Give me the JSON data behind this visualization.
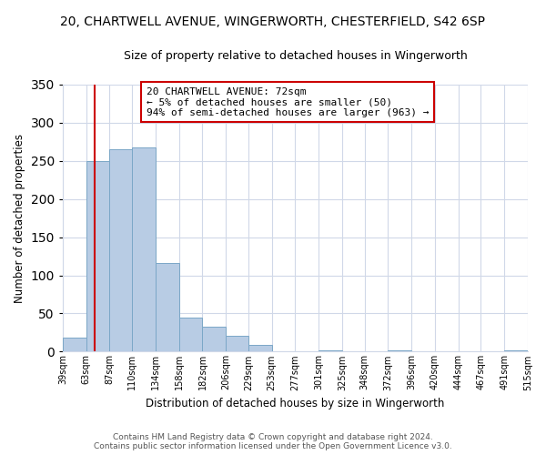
{
  "title": "20, CHARTWELL AVENUE, WINGERWORTH, CHESTERFIELD, S42 6SP",
  "subtitle": "Size of property relative to detached houses in Wingerworth",
  "xlabel": "Distribution of detached houses by size in Wingerworth",
  "ylabel": "Number of detached properties",
  "bar_edges": [
    39,
    63,
    87,
    110,
    134,
    158,
    182,
    206,
    229,
    253,
    277,
    301,
    325,
    348,
    372,
    396,
    420,
    444,
    467,
    491,
    515
  ],
  "bar_heights": [
    18,
    250,
    265,
    268,
    116,
    45,
    33,
    21,
    9,
    0,
    0,
    2,
    0,
    0,
    2,
    0,
    0,
    0,
    0,
    2
  ],
  "bar_color": "#b8cce4",
  "bar_edgecolor": "#7ba7c7",
  "property_line_x": 72,
  "property_line_color": "#cc0000",
  "ylim": [
    0,
    350
  ],
  "yticks": [
    0,
    50,
    100,
    150,
    200,
    250,
    300,
    350
  ],
  "annotation_title": "20 CHARTWELL AVENUE: 72sqm",
  "annotation_line1": "← 5% of detached houses are smaller (50)",
  "annotation_line2": "94% of semi-detached houses are larger (963) →",
  "annotation_box_color": "#ffffff",
  "annotation_box_edgecolor": "#cc0000",
  "footer_line1": "Contains HM Land Registry data © Crown copyright and database right 2024.",
  "footer_line2": "Contains public sector information licensed under the Open Government Licence v3.0.",
  "tick_labels": [
    "39sqm",
    "63sqm",
    "87sqm",
    "110sqm",
    "134sqm",
    "158sqm",
    "182sqm",
    "206sqm",
    "229sqm",
    "253sqm",
    "277sqm",
    "301sqm",
    "325sqm",
    "348sqm",
    "372sqm",
    "396sqm",
    "420sqm",
    "444sqm",
    "467sqm",
    "491sqm",
    "515sqm"
  ]
}
